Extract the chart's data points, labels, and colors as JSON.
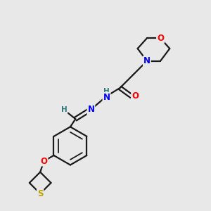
{
  "bg_color": "#e8e8e8",
  "bond_color": "#1a1a1a",
  "atom_colors": {
    "O": "#ff0000",
    "N": "#0000ee",
    "S": "#b8a000",
    "C": "#1a1a1a",
    "H": "#2a7a7a"
  }
}
